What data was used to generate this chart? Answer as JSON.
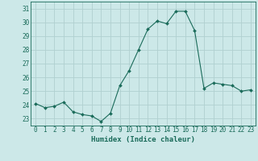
{
  "x": [
    0,
    1,
    2,
    3,
    4,
    5,
    6,
    7,
    8,
    9,
    10,
    11,
    12,
    13,
    14,
    15,
    16,
    17,
    18,
    19,
    20,
    21,
    22,
    23
  ],
  "y": [
    24.1,
    23.8,
    23.9,
    24.2,
    23.5,
    23.3,
    23.2,
    22.8,
    23.4,
    25.4,
    26.5,
    28.0,
    29.5,
    30.1,
    29.9,
    30.8,
    30.8,
    29.4,
    25.2,
    25.6,
    25.5,
    25.4,
    25.0,
    25.1
  ],
  "line_color": "#1a6b5a",
  "marker": "D",
  "marker_size": 2.0,
  "bg_color": "#cce8e8",
  "grid_color": "#b0d0d0",
  "xlabel": "Humidex (Indice chaleur)",
  "ylim": [
    22.5,
    31.5
  ],
  "yticks": [
    23,
    24,
    25,
    26,
    27,
    28,
    29,
    30,
    31
  ],
  "xticks": [
    0,
    1,
    2,
    3,
    4,
    5,
    6,
    7,
    8,
    9,
    10,
    11,
    12,
    13,
    14,
    15,
    16,
    17,
    18,
    19,
    20,
    21,
    22,
    23
  ],
  "label_fontsize": 6.5,
  "tick_fontsize": 5.5
}
